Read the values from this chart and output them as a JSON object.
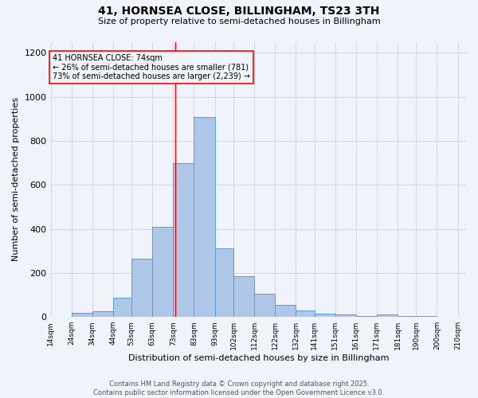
{
  "title": "41, HORNSEA CLOSE, BILLINGHAM, TS23 3TH",
  "subtitle": "Size of property relative to semi-detached houses in Billingham",
  "xlabel": "Distribution of semi-detached houses by size in Billingham",
  "ylabel": "Number of semi-detached properties",
  "footer_line1": "Contains HM Land Registry data © Crown copyright and database right 2025.",
  "footer_line2": "Contains public sector information licensed under the Open Government Licence v3.0.",
  "annotation_title": "41 HORNSEA CLOSE: 74sqm",
  "annotation_line1": "← 26% of semi-detached houses are smaller (781)",
  "annotation_line2": "73% of semi-detached houses are larger (2,239) →",
  "property_size": 74,
  "bar_left_edges": [
    14,
    24,
    34,
    44,
    53,
    63,
    73,
    83,
    93,
    102,
    112,
    122,
    132,
    141,
    151,
    161,
    171,
    181,
    190,
    200
  ],
  "bar_widths": [
    10,
    10,
    10,
    10,
    10,
    10,
    10,
    10,
    9,
    10,
    10,
    10,
    9,
    10,
    10,
    10,
    10,
    9,
    10,
    10
  ],
  "bar_heights": [
    2,
    20,
    27,
    87,
    264,
    410,
    700,
    910,
    310,
    185,
    105,
    55,
    30,
    15,
    10,
    3,
    10,
    3,
    3,
    1
  ],
  "tick_labels": [
    "14sqm",
    "24sqm",
    "34sqm",
    "44sqm",
    "53sqm",
    "63sqm",
    "73sqm",
    "83sqm",
    "93sqm",
    "102sqm",
    "112sqm",
    "122sqm",
    "132sqm",
    "141sqm",
    "151sqm",
    "161sqm",
    "171sqm",
    "181sqm",
    "190sqm",
    "200sqm",
    "210sqm"
  ],
  "tick_positions": [
    14,
    24,
    34,
    44,
    53,
    63,
    73,
    83,
    93,
    102,
    112,
    122,
    132,
    141,
    151,
    161,
    171,
    181,
    190,
    200,
    210
  ],
  "ylim": [
    0,
    1250
  ],
  "yticks": [
    0,
    200,
    400,
    600,
    800,
    1000,
    1200
  ],
  "bar_color": "#aec6e8",
  "bar_edge_color": "#5b9bd5",
  "red_line_x": 74,
  "grid_color": "#d0d8e8",
  "background_color": "#f0f4fa",
  "title_fontsize": 10,
  "subtitle_fontsize": 8,
  "ylabel_fontsize": 8,
  "xlabel_fontsize": 8,
  "tick_fontsize": 6.5,
  "ytick_fontsize": 8,
  "footer_fontsize": 6,
  "annotation_fontsize": 7
}
